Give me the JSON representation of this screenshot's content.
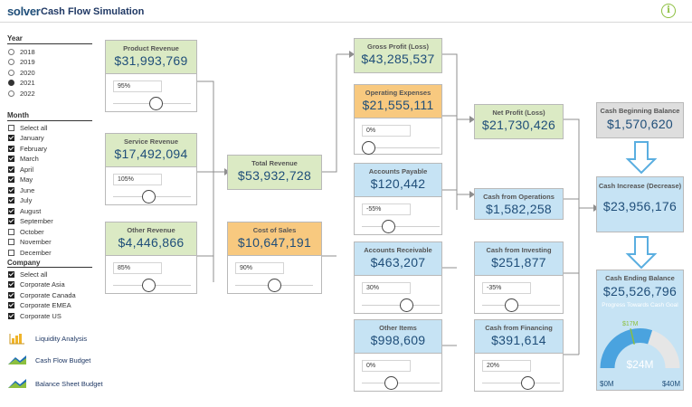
{
  "header": {
    "logo_text": "solver",
    "title": "Cash Flow Simulation",
    "info_icon": "i"
  },
  "filters": {
    "year": {
      "title": "Year",
      "options": [
        "2018",
        "2019",
        "2020",
        "2021",
        "2022"
      ],
      "selected": "2021"
    },
    "month": {
      "title": "Month",
      "options": [
        {
          "label": "Select all",
          "checked": false
        },
        {
          "label": "January",
          "checked": true
        },
        {
          "label": "February",
          "checked": true
        },
        {
          "label": "March",
          "checked": true
        },
        {
          "label": "April",
          "checked": true
        },
        {
          "label": "May",
          "checked": true
        },
        {
          "label": "June",
          "checked": true
        },
        {
          "label": "July",
          "checked": true
        },
        {
          "label": "August",
          "checked": true
        },
        {
          "label": "September",
          "checked": true
        },
        {
          "label": "October",
          "checked": false
        },
        {
          "label": "November",
          "checked": false
        },
        {
          "label": "December",
          "checked": false
        }
      ]
    },
    "company": {
      "title": "Company",
      "options": [
        {
          "label": "Select all",
          "checked": true
        },
        {
          "label": "Corporate Asia",
          "checked": true
        },
        {
          "label": "Corporate Canada",
          "checked": true
        },
        {
          "label": "Corporate EMEA",
          "checked": true
        },
        {
          "label": "Corporate US",
          "checked": true
        }
      ]
    }
  },
  "links": [
    {
      "label": "Liquidity Analysis",
      "icon": "bar-chart-icon"
    },
    {
      "label": "Cash Flow Budget",
      "icon": "solver-mountain-icon"
    },
    {
      "label": "Balance Sheet Budget",
      "icon": "solver-mountain-icon"
    }
  ],
  "cards": {
    "product_revenue": {
      "label": "Product Revenue",
      "value": "$31,993,769",
      "pct": "95%",
      "slider_pos": 0.55
    },
    "service_revenue": {
      "label": "Service Revenue",
      "value": "$17,492,094",
      "pct": "105%",
      "slider_pos": 0.45
    },
    "other_revenue": {
      "label": "Other Revenue",
      "value": "$4,446,866",
      "pct": "85%",
      "slider_pos": 0.45
    },
    "total_revenue": {
      "label": "Total Revenue",
      "value": "$53,932,728"
    },
    "cost_of_sales": {
      "label": "Cost of Sales",
      "value": "$10,647,191",
      "pct": "90%",
      "slider_pos": 0.5
    },
    "gross_profit": {
      "label": "Gross Profit (Loss)",
      "value": "$43,285,537"
    },
    "operating_expenses": {
      "label": "Operating Expenses",
      "value": "$21,555,111",
      "pct": "0%",
      "slider_pos": 0.0
    },
    "accounts_payable": {
      "label": "Accounts Payable",
      "value": "$120,442",
      "pct": "-55%",
      "slider_pos": 0.3
    },
    "accounts_receivable": {
      "label": "Accounts Receivable",
      "value": "$463,207",
      "pct": "30%",
      "slider_pos": 0.58
    },
    "other_items": {
      "label": "Other Items",
      "value": "$998,609",
      "pct": "0%",
      "slider_pos": 0.35
    },
    "net_profit": {
      "label": "Net Profit (Loss)",
      "value": "$21,730,426"
    },
    "cash_from_operations": {
      "label": "Cash from Operations",
      "value": "$1,582,258"
    },
    "cash_from_investing": {
      "label": "Cash from Investing",
      "value": "$251,877",
      "pct": "-35%",
      "slider_pos": 0.35
    },
    "cash_from_financing": {
      "label": "Cash from Financing",
      "value": "$391,614",
      "pct": "20%",
      "slider_pos": 0.6
    }
  },
  "summary": {
    "beginning": {
      "label": "Cash Beginning Balance",
      "value": "$1,570,620"
    },
    "increase": {
      "label": "Cash Increase (Decrease)",
      "value": "$23,956,176"
    },
    "ending": {
      "label": "Cash Ending Balance",
      "value": "$25,526,796"
    }
  },
  "gauge": {
    "title": "Progress Towards Cash Goal",
    "value_label": "$24M",
    "target_label": "$17M",
    "min_label": "$0M",
    "max_label": "$40M",
    "value": 24,
    "target": 17,
    "min": 0,
    "max": 40,
    "fill_color": "#4aa3df",
    "track_color": "#e6e6e6",
    "target_color": "#8cbf3f"
  },
  "colors": {
    "green_header": "#dbeac4",
    "orange_header": "#f8c97f",
    "blue_header": "#c6e3f4",
    "value_text": "#1f4e79"
  }
}
